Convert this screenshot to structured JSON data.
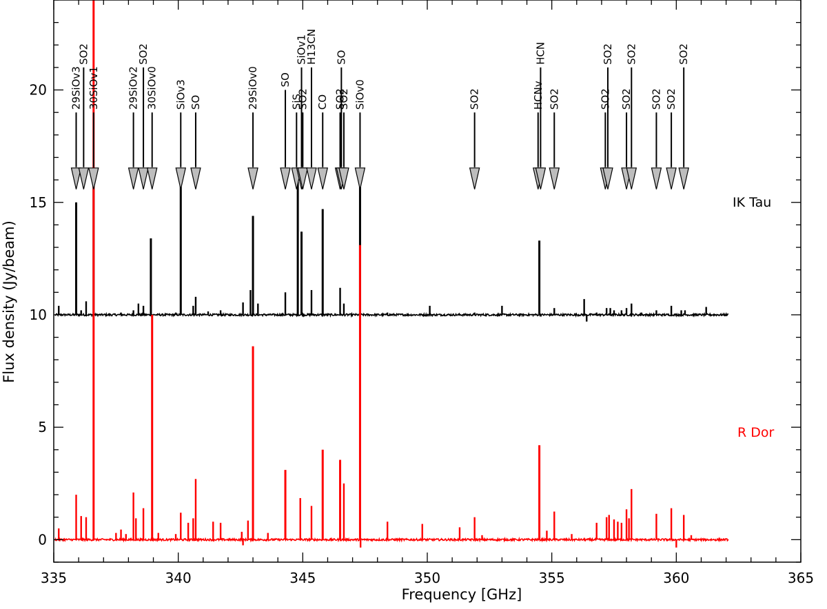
{
  "chart_data": {
    "type": "line",
    "xlabel": "Frequency [GHz]",
    "ylabel": "Flux density (Jy/beam)",
    "xlim": [
      335,
      365
    ],
    "ylim": [
      -1,
      24
    ],
    "xticks": [
      335,
      340,
      345,
      350,
      355,
      360,
      365
    ],
    "yticks": [
      0,
      5,
      10,
      15,
      20
    ],
    "series": [
      {
        "name": "IK Tau",
        "color": "#000000",
        "baseline": 10,
        "peaks": [
          [
            335.2,
            10.4
          ],
          [
            335.9,
            15.0
          ],
          [
            336.1,
            10.2
          ],
          [
            336.3,
            10.6
          ],
          [
            336.6,
            15.8
          ],
          [
            337.7,
            10.1
          ],
          [
            338.2,
            10.2
          ],
          [
            338.4,
            10.5
          ],
          [
            338.6,
            10.4
          ],
          [
            338.9,
            13.4
          ],
          [
            339.9,
            10.1
          ],
          [
            340.1,
            16.2
          ],
          [
            340.6,
            10.4
          ],
          [
            340.7,
            10.8
          ],
          [
            341.2,
            10.15
          ],
          [
            341.7,
            10.2
          ],
          [
            342.6,
            10.55
          ],
          [
            342.9,
            11.1
          ],
          [
            343.0,
            14.4
          ],
          [
            343.2,
            10.5
          ],
          [
            344.3,
            11.0
          ],
          [
            344.8,
            15.9
          ],
          [
            344.95,
            13.7
          ],
          [
            345.35,
            11.1
          ],
          [
            345.8,
            14.7
          ],
          [
            346.5,
            11.2
          ],
          [
            346.65,
            10.5
          ],
          [
            347.3,
            16.1
          ],
          [
            348.4,
            10.1
          ],
          [
            350.1,
            10.4
          ],
          [
            351.9,
            10.1
          ],
          [
            353.0,
            10.4
          ],
          [
            354.5,
            13.3
          ],
          [
            355.1,
            10.3
          ],
          [
            356.3,
            10.7
          ],
          [
            356.4,
            9.7
          ],
          [
            356.8,
            10.1
          ],
          [
            357.2,
            10.3
          ],
          [
            357.35,
            10.3
          ],
          [
            357.5,
            10.2
          ],
          [
            357.8,
            10.2
          ],
          [
            358.0,
            10.3
          ],
          [
            358.2,
            10.5
          ],
          [
            358.6,
            10.1
          ],
          [
            359.2,
            10.2
          ],
          [
            359.8,
            10.4
          ],
          [
            360.2,
            10.2
          ],
          [
            360.35,
            10.2
          ],
          [
            361.2,
            10.35
          ]
        ]
      },
      {
        "name": "R Dor",
        "color": "#ff0000",
        "baseline": 0,
        "peaks": [
          [
            335.2,
            0.5
          ],
          [
            335.9,
            2.0
          ],
          [
            336.1,
            1.05
          ],
          [
            336.3,
            1.0
          ],
          [
            336.6,
            24
          ],
          [
            337.5,
            0.3
          ],
          [
            337.7,
            0.45
          ],
          [
            337.9,
            0.25
          ],
          [
            338.2,
            2.1
          ],
          [
            338.3,
            0.95
          ],
          [
            338.6,
            1.4
          ],
          [
            338.95,
            10.0
          ],
          [
            339.2,
            0.3
          ],
          [
            339.9,
            0.25
          ],
          [
            340.1,
            1.2
          ],
          [
            340.4,
            0.75
          ],
          [
            340.6,
            0.95
          ],
          [
            340.7,
            2.7
          ],
          [
            341.4,
            0.8
          ],
          [
            341.7,
            0.75
          ],
          [
            342.55,
            0.35
          ],
          [
            342.6,
            -0.25
          ],
          [
            342.8,
            0.85
          ],
          [
            343.0,
            8.6
          ],
          [
            343.6,
            0.3
          ],
          [
            344.3,
            3.1
          ],
          [
            344.9,
            1.85
          ],
          [
            345.35,
            1.5
          ],
          [
            345.8,
            4.0
          ],
          [
            346.5,
            3.55
          ],
          [
            346.65,
            2.5
          ],
          [
            347.3,
            13.1
          ],
          [
            347.32,
            -0.35
          ],
          [
            348.4,
            0.8
          ],
          [
            349.8,
            0.7
          ],
          [
            351.3,
            0.55
          ],
          [
            351.9,
            1.0
          ],
          [
            352.2,
            0.2
          ],
          [
            354.5,
            4.2
          ],
          [
            354.8,
            0.4
          ],
          [
            355.1,
            1.25
          ],
          [
            355.8,
            0.25
          ],
          [
            356.8,
            0.75
          ],
          [
            357.2,
            1.0
          ],
          [
            357.3,
            1.1
          ],
          [
            357.5,
            0.9
          ],
          [
            357.65,
            0.8
          ],
          [
            357.8,
            0.75
          ],
          [
            358.0,
            1.35
          ],
          [
            358.1,
            0.95
          ],
          [
            358.2,
            2.25
          ],
          [
            359.2,
            1.15
          ],
          [
            359.8,
            1.4
          ],
          [
            360.0,
            -0.35
          ],
          [
            360.3,
            1.1
          ],
          [
            360.6,
            0.2
          ]
        ]
      }
    ],
    "legend": {
      "ik_tau": "IK Tau",
      "r_dor": "R Dor"
    },
    "annotations": {
      "arrow_head_y": 16.5,
      "arrows": [
        {
          "x": 335.9,
          "label": "29SiOv3",
          "top": 19
        },
        {
          "x": 336.2,
          "label": "SO2",
          "top": 21
        },
        {
          "x": 336.6,
          "label": "30SiOv1",
          "top": 19
        },
        {
          "x": 338.2,
          "label": "29SiOv2",
          "top": 19
        },
        {
          "x": 338.6,
          "label": "SO2",
          "top": 21
        },
        {
          "x": 338.95,
          "label": "30SiOv0",
          "top": 19
        },
        {
          "x": 340.1,
          "label": "SiOv3",
          "top": 19
        },
        {
          "x": 340.7,
          "label": "SO",
          "top": 19
        },
        {
          "x": 343.0,
          "label": "29SiOv0",
          "top": 19
        },
        {
          "x": 344.3,
          "label": "SO",
          "top": 20
        },
        {
          "x": 344.75,
          "label": "SiS",
          "top": 19
        },
        {
          "x": 344.95,
          "label": "SiOv1",
          "top": 21
        },
        {
          "x": 345.0,
          "label": "SO2",
          "top": 19
        },
        {
          "x": 345.35,
          "label": "H13CN",
          "top": 21
        },
        {
          "x": 345.8,
          "label": "CO",
          "top": 19
        },
        {
          "x": 346.5,
          "label": "SO2",
          "top": 19
        },
        {
          "x": 346.55,
          "label": "SO",
          "top": 21
        },
        {
          "x": 346.65,
          "label": "SO2",
          "top": 19
        },
        {
          "x": 347.3,
          "label": "SiOv0",
          "top": 19
        },
        {
          "x": 351.9,
          "label": "SO2",
          "top": 19
        },
        {
          "x": 354.45,
          "label": "HCNv",
          "top": 19
        },
        {
          "x": 354.55,
          "label": "HCN",
          "top": 21
        },
        {
          "x": 355.1,
          "label": "SO2",
          "top": 19
        },
        {
          "x": 357.15,
          "label": "SO2",
          "top": 19
        },
        {
          "x": 357.25,
          "label": "SO2",
          "top": 21
        },
        {
          "x": 358.0,
          "label": "SO2",
          "top": 19
        },
        {
          "x": 358.2,
          "label": "SO2",
          "top": 21
        },
        {
          "x": 359.2,
          "label": "SO2",
          "top": 19
        },
        {
          "x": 359.8,
          "label": "SO2",
          "top": 19
        },
        {
          "x": 360.3,
          "label": "SO2",
          "top": 21
        }
      ]
    }
  }
}
